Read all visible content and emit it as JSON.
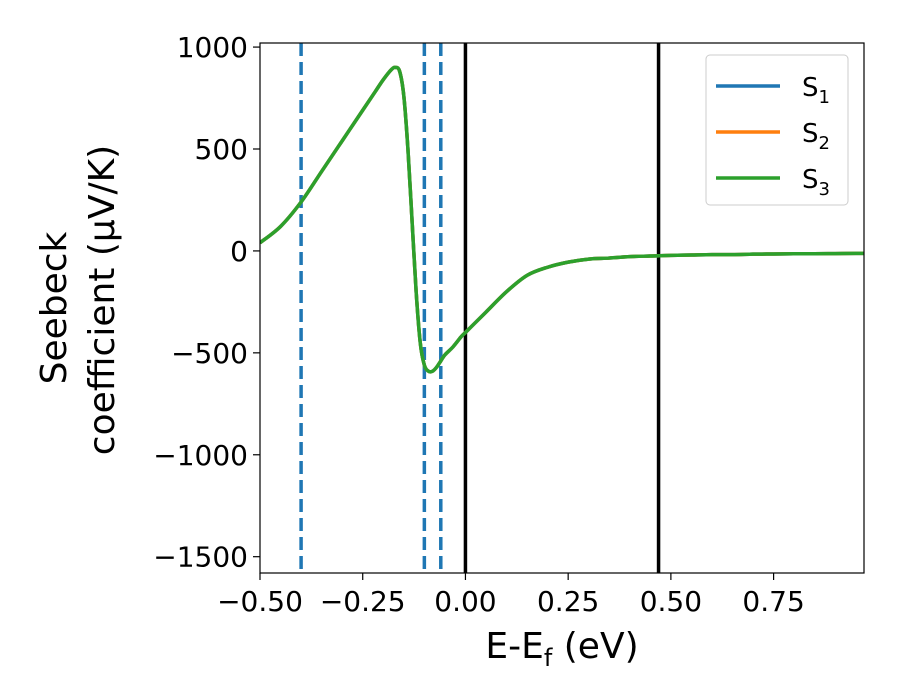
{
  "chart_data": {
    "type": "line",
    "xlabel_main": "E-E",
    "xlabel_sub": "f",
    "xlabel_unit": " (eV)",
    "ylabel_line1": "Seebeck",
    "ylabel_line2": "coefficient  (μV/K)",
    "xlim": [
      -0.5,
      0.97
    ],
    "ylim": [
      -1580,
      1020
    ],
    "xticks": [
      -0.5,
      -0.25,
      0.0,
      0.25,
      0.5,
      0.75
    ],
    "xtick_labels": [
      "−0.50",
      "−0.25",
      "0.00",
      "0.25",
      "0.50",
      "0.75"
    ],
    "yticks": [
      1000,
      500,
      0,
      -500,
      -1000,
      -1500
    ],
    "ytick_labels": [
      "1000",
      "500",
      "0",
      "−500",
      "−1000",
      "−1500"
    ],
    "grid": false,
    "legend_position": "top-right",
    "x": [
      -0.5,
      -0.45,
      -0.4,
      -0.35,
      -0.3,
      -0.25,
      -0.22,
      -0.2,
      -0.18,
      -0.17,
      -0.16,
      -0.15,
      -0.14,
      -0.13,
      -0.12,
      -0.11,
      -0.1,
      -0.09,
      -0.08,
      -0.07,
      -0.06,
      -0.05,
      -0.03,
      -0.01,
      0.0,
      0.02,
      0.05,
      0.1,
      0.15,
      0.2,
      0.25,
      0.3,
      0.35,
      0.4,
      0.45,
      0.5,
      0.55,
      0.6,
      0.65,
      0.7,
      0.75,
      0.8,
      0.85,
      0.9,
      0.95,
      0.97
    ],
    "series": [
      {
        "name_main": "S",
        "name_sub": "1",
        "color": "#1f77b4",
        "values": [
          40,
          120,
          240,
          390,
          540,
          690,
          780,
          840,
          890,
          900,
          880,
          760,
          500,
          150,
          -200,
          -450,
          -560,
          -590,
          -590,
          -570,
          -540,
          -510,
          -470,
          -420,
          -400,
          -360,
          -300,
          -200,
          -120,
          -80,
          -55,
          -40,
          -35,
          -28,
          -25,
          -22,
          -20,
          -18,
          -18,
          -16,
          -15,
          -14,
          -14,
          -13,
          -12,
          -12
        ]
      },
      {
        "name_main": "S",
        "name_sub": "2",
        "color": "#ff7f0e",
        "values": [
          40,
          120,
          240,
          390,
          540,
          690,
          780,
          840,
          890,
          900,
          880,
          760,
          500,
          150,
          -200,
          -450,
          -560,
          -590,
          -590,
          -570,
          -540,
          -510,
          -470,
          -420,
          -400,
          -360,
          -300,
          -200,
          -120,
          -80,
          -55,
          -40,
          -35,
          -28,
          -25,
          -22,
          -20,
          -18,
          -18,
          -16,
          -15,
          -14,
          -14,
          -13,
          -12,
          -12
        ]
      },
      {
        "name_main": "S",
        "name_sub": "3",
        "color": "#2ca02c",
        "values": [
          40,
          120,
          240,
          390,
          540,
          690,
          780,
          840,
          890,
          900,
          880,
          760,
          500,
          150,
          -200,
          -450,
          -560,
          -590,
          -590,
          -570,
          -540,
          -510,
          -470,
          -420,
          -400,
          -360,
          -300,
          -200,
          -120,
          -80,
          -55,
          -40,
          -35,
          -28,
          -25,
          -22,
          -20,
          -18,
          -18,
          -16,
          -15,
          -14,
          -14,
          -13,
          -12,
          -12
        ]
      }
    ],
    "vlines_dashed": {
      "color": "#1f77b4",
      "x": [
        -0.4,
        -0.1,
        -0.06
      ]
    },
    "vlines_solid": {
      "color": "#000000",
      "x": [
        0.0,
        0.47
      ]
    }
  }
}
